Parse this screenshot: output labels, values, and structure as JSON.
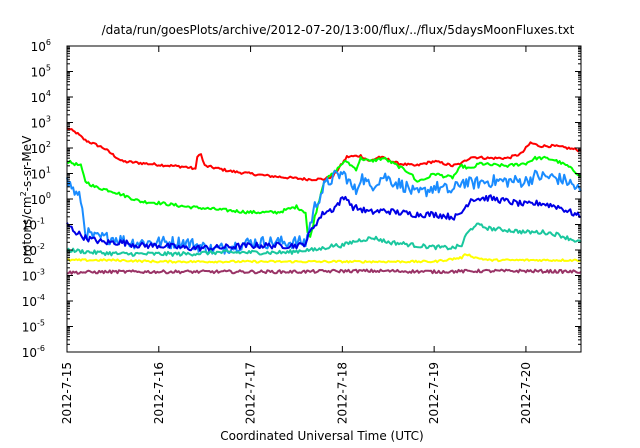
{
  "chart_data": {
    "type": "line",
    "title": "/data/run/goesPlots/archive/2012-07-20/13:00/flux/../flux/5daysMoonFluxes.txt",
    "xlabel": "Coordinated Universal Time (UTC)",
    "ylabel": {
      "pre": "protons/cm",
      "sup": "2",
      "post": "-s-sr-MeV"
    },
    "y_scale": "log",
    "ylim": [
      1e-06,
      1000000.0
    ],
    "xlim": [
      0,
      5.6
    ],
    "x_origin_label": "2012-7-15",
    "x_ticks": [
      {
        "x": 0,
        "label": "2012-7-15"
      },
      {
        "x": 1,
        "label": "2012-7-16"
      },
      {
        "x": 2,
        "label": "2012-7-17"
      },
      {
        "x": 3,
        "label": "2012-7-18"
      },
      {
        "x": 4,
        "label": "2012-7-19"
      },
      {
        "x": 5,
        "label": "2012-7-20"
      }
    ],
    "y_ticks": [
      {
        "exp": "-6",
        "v": 1e-06
      },
      {
        "exp": "-5",
        "v": 1e-05
      },
      {
        "exp": "-4",
        "v": 0.0001
      },
      {
        "exp": "-3",
        "v": 0.001
      },
      {
        "exp": "-2",
        "v": 0.01
      },
      {
        "exp": "-1",
        "v": 0.1
      },
      {
        "exp": "0",
        "v": 1
      },
      {
        "exp": "1",
        "v": 10
      },
      {
        "exp": "2",
        "v": 100
      },
      {
        "exp": "3",
        "v": 1000
      },
      {
        "exp": "4",
        "v": 10000
      },
      {
        "exp": "5",
        "v": 100000
      },
      {
        "exp": "6",
        "v": 1000000
      }
    ],
    "grid": false,
    "legend": "none",
    "series": [
      {
        "color": "#ff0000",
        "noise": 0.05,
        "points": [
          [
            0,
            600
          ],
          [
            0.1,
            400
          ],
          [
            0.2,
            200
          ],
          [
            0.4,
            100
          ],
          [
            0.6,
            30
          ],
          [
            1.0,
            22
          ],
          [
            1.3,
            18
          ],
          [
            1.4,
            15
          ],
          [
            1.4,
            15
          ],
          [
            1.42,
            50
          ],
          [
            1.46,
            55
          ],
          [
            1.5,
            20
          ],
          [
            1.8,
            12
          ],
          [
            2.2,
            8
          ],
          [
            2.6,
            6
          ],
          [
            2.8,
            6
          ],
          [
            2.9,
            8
          ],
          [
            3.0,
            25
          ],
          [
            3.05,
            45
          ],
          [
            3.2,
            50
          ],
          [
            3.3,
            30
          ],
          [
            3.4,
            45
          ],
          [
            3.5,
            35
          ],
          [
            3.6,
            25
          ],
          [
            3.8,
            20
          ],
          [
            3.9,
            25
          ],
          [
            4.0,
            30
          ],
          [
            4.1,
            25
          ],
          [
            4.2,
            20
          ],
          [
            4.3,
            25
          ],
          [
            4.4,
            45
          ],
          [
            4.6,
            40
          ],
          [
            4.8,
            40
          ],
          [
            4.95,
            60
          ],
          [
            5.05,
            160
          ],
          [
            5.15,
            120
          ],
          [
            5.3,
            120
          ],
          [
            5.45,
            100
          ],
          [
            5.6,
            80
          ]
        ]
      },
      {
        "color": "#00ff00",
        "noise": 0.06,
        "points": [
          [
            0,
            30
          ],
          [
            0.15,
            20
          ],
          [
            0.2,
            5
          ],
          [
            0.3,
            3
          ],
          [
            0.5,
            2
          ],
          [
            0.8,
            0.8
          ],
          [
            1.0,
            0.7
          ],
          [
            1.3,
            0.5
          ],
          [
            1.6,
            0.4
          ],
          [
            2.0,
            0.3
          ],
          [
            2.3,
            0.3
          ],
          [
            2.5,
            0.5
          ],
          [
            2.6,
            0.3
          ],
          [
            2.62,
            0.05
          ],
          [
            2.65,
            0.03
          ],
          [
            2.7,
            0.2
          ],
          [
            2.75,
            1
          ],
          [
            2.8,
            5
          ],
          [
            2.9,
            10
          ],
          [
            3.0,
            25
          ],
          [
            3.05,
            30
          ],
          [
            3.1,
            20
          ],
          [
            3.15,
            15
          ],
          [
            3.2,
            40
          ],
          [
            3.3,
            30
          ],
          [
            3.45,
            40
          ],
          [
            3.6,
            20
          ],
          [
            3.75,
            10
          ],
          [
            3.8,
            5
          ],
          [
            3.9,
            6
          ],
          [
            4.0,
            10
          ],
          [
            4.1,
            8
          ],
          [
            4.2,
            7
          ],
          [
            4.3,
            20
          ],
          [
            4.4,
            15
          ],
          [
            4.5,
            25
          ],
          [
            4.6,
            22
          ],
          [
            4.8,
            20
          ],
          [
            5.0,
            25
          ],
          [
            5.1,
            40
          ],
          [
            5.2,
            40
          ],
          [
            5.3,
            35
          ],
          [
            5.45,
            20
          ],
          [
            5.6,
            8
          ]
        ]
      },
      {
        "color": "#1a8cff",
        "noise": 0.25,
        "points": [
          [
            0,
            5
          ],
          [
            0.05,
            3
          ],
          [
            0.1,
            1.5
          ],
          [
            0.15,
            1
          ],
          [
            0.2,
            0.05
          ],
          [
            0.3,
            0.03
          ],
          [
            0.5,
            0.03
          ],
          [
            0.7,
            0.02
          ],
          [
            1.0,
            0.02
          ],
          [
            1.3,
            0.02
          ],
          [
            1.6,
            0.01
          ],
          [
            2.0,
            0.02
          ],
          [
            2.3,
            0.02
          ],
          [
            2.55,
            0.02
          ],
          [
            2.6,
            0.02
          ],
          [
            2.65,
            0.1
          ],
          [
            2.7,
            0.5
          ],
          [
            2.8,
            3
          ],
          [
            2.9,
            7
          ],
          [
            3.0,
            10
          ],
          [
            3.05,
            7
          ],
          [
            3.1,
            3
          ],
          [
            3.15,
            2
          ],
          [
            3.2,
            8
          ],
          [
            3.3,
            3
          ],
          [
            3.45,
            8
          ],
          [
            3.55,
            5
          ],
          [
            3.7,
            3
          ],
          [
            3.8,
            1.5
          ],
          [
            3.9,
            2
          ],
          [
            4.0,
            3
          ],
          [
            4.1,
            2.5
          ],
          [
            4.2,
            2
          ],
          [
            4.3,
            5
          ],
          [
            4.4,
            4
          ],
          [
            4.6,
            5
          ],
          [
            4.8,
            5
          ],
          [
            5.0,
            5
          ],
          [
            5.1,
            8
          ],
          [
            5.3,
            7
          ],
          [
            5.45,
            5
          ],
          [
            5.6,
            2
          ]
        ]
      },
      {
        "color": "#0000e6",
        "noise": 0.12,
        "points": [
          [
            0,
            0.1
          ],
          [
            0.1,
            0.05
          ],
          [
            0.2,
            0.03
          ],
          [
            0.4,
            0.02
          ],
          [
            0.6,
            0.02
          ],
          [
            0.8,
            0.015
          ],
          [
            1.0,
            0.015
          ],
          [
            1.3,
            0.012
          ],
          [
            1.6,
            0.012
          ],
          [
            2.0,
            0.015
          ],
          [
            2.3,
            0.015
          ],
          [
            2.55,
            0.015
          ],
          [
            2.6,
            0.02
          ],
          [
            2.65,
            0.05
          ],
          [
            2.7,
            0.1
          ],
          [
            2.8,
            0.3
          ],
          [
            2.9,
            0.4
          ],
          [
            3.0,
            1
          ],
          [
            3.05,
            1.2
          ],
          [
            3.1,
            0.5
          ],
          [
            3.2,
            0.4
          ],
          [
            3.3,
            0.3
          ],
          [
            3.45,
            0.35
          ],
          [
            3.6,
            0.3
          ],
          [
            3.8,
            0.25
          ],
          [
            4.0,
            0.25
          ],
          [
            4.2,
            0.2
          ],
          [
            4.25,
            0.2
          ],
          [
            4.3,
            0.3
          ],
          [
            4.4,
            1
          ],
          [
            4.6,
            1.1
          ],
          [
            4.8,
            0.8
          ],
          [
            5.0,
            0.6
          ],
          [
            5.15,
            0.7
          ],
          [
            5.35,
            0.5
          ],
          [
            5.6,
            0.2
          ]
        ]
      },
      {
        "color": "#1ac79e",
        "noise": 0.08,
        "points": [
          [
            0,
            0.01
          ],
          [
            0.3,
            0.008
          ],
          [
            0.6,
            0.007
          ],
          [
            1.0,
            0.007
          ],
          [
            1.3,
            0.007
          ],
          [
            1.6,
            0.008
          ],
          [
            2.0,
            0.008
          ],
          [
            2.4,
            0.008
          ],
          [
            2.6,
            0.01
          ],
          [
            2.7,
            0.01
          ],
          [
            2.8,
            0.012
          ],
          [
            2.9,
            0.015
          ],
          [
            3.0,
            0.015
          ],
          [
            3.1,
            0.02
          ],
          [
            3.2,
            0.025
          ],
          [
            3.35,
            0.03
          ],
          [
            3.5,
            0.02
          ],
          [
            3.65,
            0.018
          ],
          [
            3.8,
            0.015
          ],
          [
            4.0,
            0.013
          ],
          [
            4.2,
            0.012
          ],
          [
            4.3,
            0.015
          ],
          [
            4.35,
            0.04
          ],
          [
            4.45,
            0.1
          ],
          [
            4.6,
            0.07
          ],
          [
            4.8,
            0.06
          ],
          [
            5.0,
            0.05
          ],
          [
            5.2,
            0.05
          ],
          [
            5.35,
            0.04
          ],
          [
            5.45,
            0.03
          ],
          [
            5.6,
            0.02
          ]
        ]
      },
      {
        "color": "#ffff00",
        "noise": 0.04,
        "points": [
          [
            0,
            0.004
          ],
          [
            0.5,
            0.004
          ],
          [
            1.0,
            0.0035
          ],
          [
            1.5,
            0.0035
          ],
          [
            2.0,
            0.0035
          ],
          [
            2.5,
            0.0035
          ],
          [
            3.0,
            0.0035
          ],
          [
            3.5,
            0.0035
          ],
          [
            4.0,
            0.0035
          ],
          [
            4.3,
            0.005
          ],
          [
            4.35,
            0.007
          ],
          [
            4.45,
            0.005
          ],
          [
            4.6,
            0.004
          ],
          [
            5.0,
            0.004
          ],
          [
            5.6,
            0.004
          ]
        ]
      },
      {
        "color": "#993366",
        "noise": 0.06,
        "points": [
          [
            0,
            0.0013
          ],
          [
            0.5,
            0.0014
          ],
          [
            1.0,
            0.0014
          ],
          [
            1.5,
            0.0014
          ],
          [
            2.0,
            0.0014
          ],
          [
            2.5,
            0.0014
          ],
          [
            3.0,
            0.0015
          ],
          [
            3.5,
            0.0015
          ],
          [
            4.0,
            0.0014
          ],
          [
            4.5,
            0.0015
          ],
          [
            5.0,
            0.0015
          ],
          [
            5.6,
            0.0014
          ]
        ]
      }
    ]
  }
}
